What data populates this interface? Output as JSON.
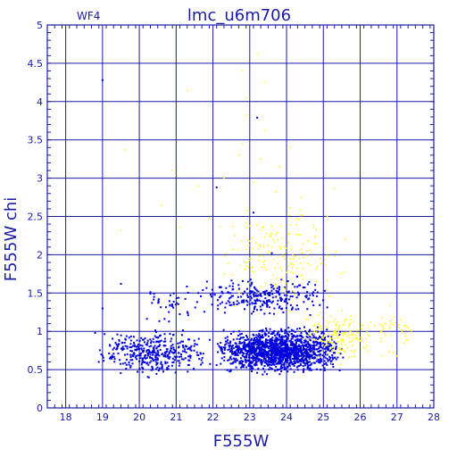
{
  "chart_data": {
    "type": "scatter",
    "title": "lmc_u6m706",
    "chip_label": "WF4",
    "xlabel": "F555W",
    "ylabel": "F555W  chi",
    "xlim": [
      17.5,
      28
    ],
    "ylim": [
      0,
      5
    ],
    "x_ticks": [
      18,
      19,
      20,
      21,
      22,
      23,
      24,
      25,
      26,
      27,
      28
    ],
    "y_ticks": [
      0,
      0.5,
      1,
      1.5,
      2,
      2.5,
      3,
      3.5,
      4,
      4.5,
      5
    ],
    "minor_x_step": 0.2,
    "minor_y_step": 0.1,
    "grid": true,
    "colors": {
      "axes": "#1a1aa6",
      "primary": "#0000dd",
      "secondary": "#ffff00",
      "background": "#ffffff"
    },
    "series": [
      {
        "color": "#0000dd",
        "marker": "square",
        "cloud_regions": [
          {
            "x_range": [
              22.0,
              25.6
            ],
            "y_range": [
              0.4,
              1.1
            ],
            "count": 1500
          },
          {
            "x_range": [
              18.8,
              22.0
            ],
            "y_range": [
              0.35,
              1.1
            ],
            "count": 380
          },
          {
            "x_range": [
              21.5,
              25.3
            ],
            "y_range": [
              1.1,
              1.8
            ],
            "count": 260
          },
          {
            "x_range": [
              20.0,
              21.8
            ],
            "y_range": [
              1.05,
              1.7
            ],
            "count": 40
          }
        ],
        "points": [
          {
            "x": 19.0,
            "y": 4.28
          },
          {
            "x": 23.2,
            "y": 3.79
          },
          {
            "x": 22.1,
            "y": 2.88
          },
          {
            "x": 23.1,
            "y": 2.55
          },
          {
            "x": 23.6,
            "y": 2.02
          },
          {
            "x": 19.5,
            "y": 1.62
          },
          {
            "x": 18.8,
            "y": 0.98
          },
          {
            "x": 18.9,
            "y": 0.6
          },
          {
            "x": 19.0,
            "y": 1.3
          },
          {
            "x": 20.4,
            "y": 1.45
          }
        ]
      },
      {
        "color": "#ffff00",
        "marker": "dot",
        "cloud_regions": [
          {
            "x_range": [
              24.4,
              26.4
            ],
            "y_range": [
              0.5,
              1.4
            ],
            "count": 170
          },
          {
            "x_range": [
              22.0,
              25.6
            ],
            "y_range": [
              1.2,
              2.8
            ],
            "count": 190
          },
          {
            "x_range": [
              26.0,
              27.6
            ],
            "y_range": [
              0.6,
              1.4
            ],
            "count": 45
          }
        ],
        "points": [
          {
            "x": 23.2,
            "y": 4.62
          },
          {
            "x": 22.8,
            "y": 4.4
          },
          {
            "x": 21.3,
            "y": 4.15
          },
          {
            "x": 23.4,
            "y": 4.25
          },
          {
            "x": 22.9,
            "y": 4.05
          },
          {
            "x": 22.9,
            "y": 3.82
          },
          {
            "x": 23.4,
            "y": 3.62
          },
          {
            "x": 22.8,
            "y": 3.45
          },
          {
            "x": 24.1,
            "y": 3.4
          },
          {
            "x": 19.6,
            "y": 3.37
          },
          {
            "x": 22.7,
            "y": 3.3
          },
          {
            "x": 23.3,
            "y": 3.25
          },
          {
            "x": 23.8,
            "y": 3.15
          },
          {
            "x": 20.9,
            "y": 3.1
          },
          {
            "x": 22.3,
            "y": 3.0
          },
          {
            "x": 23.1,
            "y": 2.95
          },
          {
            "x": 21.6,
            "y": 2.9
          },
          {
            "x": 23.7,
            "y": 2.82
          },
          {
            "x": 24.4,
            "y": 2.75
          },
          {
            "x": 25.3,
            "y": 2.87
          },
          {
            "x": 20.6,
            "y": 2.65
          },
          {
            "x": 21.9,
            "y": 2.48
          },
          {
            "x": 19.5,
            "y": 2.32
          },
          {
            "x": 21.1,
            "y": 2.35
          },
          {
            "x": 22.6,
            "y": 2.25
          },
          {
            "x": 25.6,
            "y": 2.2
          },
          {
            "x": 27.1,
            "y": 1.15
          },
          {
            "x": 27.3,
            "y": 1.05
          },
          {
            "x": 27.2,
            "y": 0.85
          },
          {
            "x": 26.9,
            "y": 0.72
          },
          {
            "x": 27.0,
            "y": 0.68
          }
        ]
      }
    ]
  }
}
